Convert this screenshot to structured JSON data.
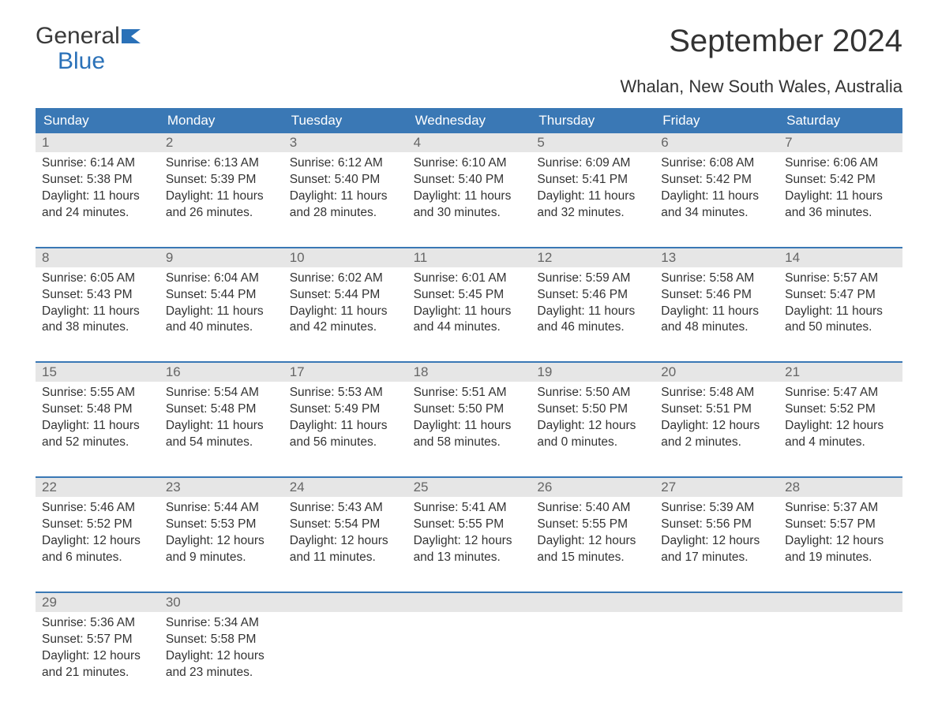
{
  "logo": {
    "word1": "General",
    "word2": "Blue",
    "flag_color": "#2a71b8"
  },
  "title": "September 2024",
  "subtitle": "Whalan, New South Wales, Australia",
  "colors": {
    "header_bg": "#3a78b5",
    "header_text": "#ffffff",
    "daynum_bg": "#e6e6e6",
    "daynum_text": "#666666",
    "body_text": "#333333",
    "week_border": "#3a78b5",
    "page_bg": "#ffffff"
  },
  "day_headers": [
    "Sunday",
    "Monday",
    "Tuesday",
    "Wednesday",
    "Thursday",
    "Friday",
    "Saturday"
  ],
  "weeks": [
    [
      {
        "n": "1",
        "sunrise": "6:14 AM",
        "sunset": "5:38 PM",
        "dl1": "Daylight: 11 hours",
        "dl2": "and 24 minutes."
      },
      {
        "n": "2",
        "sunrise": "6:13 AM",
        "sunset": "5:39 PM",
        "dl1": "Daylight: 11 hours",
        "dl2": "and 26 minutes."
      },
      {
        "n": "3",
        "sunrise": "6:12 AM",
        "sunset": "5:40 PM",
        "dl1": "Daylight: 11 hours",
        "dl2": "and 28 minutes."
      },
      {
        "n": "4",
        "sunrise": "6:10 AM",
        "sunset": "5:40 PM",
        "dl1": "Daylight: 11 hours",
        "dl2": "and 30 minutes."
      },
      {
        "n": "5",
        "sunrise": "6:09 AM",
        "sunset": "5:41 PM",
        "dl1": "Daylight: 11 hours",
        "dl2": "and 32 minutes."
      },
      {
        "n": "6",
        "sunrise": "6:08 AM",
        "sunset": "5:42 PM",
        "dl1": "Daylight: 11 hours",
        "dl2": "and 34 minutes."
      },
      {
        "n": "7",
        "sunrise": "6:06 AM",
        "sunset": "5:42 PM",
        "dl1": "Daylight: 11 hours",
        "dl2": "and 36 minutes."
      }
    ],
    [
      {
        "n": "8",
        "sunrise": "6:05 AM",
        "sunset": "5:43 PM",
        "dl1": "Daylight: 11 hours",
        "dl2": "and 38 minutes."
      },
      {
        "n": "9",
        "sunrise": "6:04 AM",
        "sunset": "5:44 PM",
        "dl1": "Daylight: 11 hours",
        "dl2": "and 40 minutes."
      },
      {
        "n": "10",
        "sunrise": "6:02 AM",
        "sunset": "5:44 PM",
        "dl1": "Daylight: 11 hours",
        "dl2": "and 42 minutes."
      },
      {
        "n": "11",
        "sunrise": "6:01 AM",
        "sunset": "5:45 PM",
        "dl1": "Daylight: 11 hours",
        "dl2": "and 44 minutes."
      },
      {
        "n": "12",
        "sunrise": "5:59 AM",
        "sunset": "5:46 PM",
        "dl1": "Daylight: 11 hours",
        "dl2": "and 46 minutes."
      },
      {
        "n": "13",
        "sunrise": "5:58 AM",
        "sunset": "5:46 PM",
        "dl1": "Daylight: 11 hours",
        "dl2": "and 48 minutes."
      },
      {
        "n": "14",
        "sunrise": "5:57 AM",
        "sunset": "5:47 PM",
        "dl1": "Daylight: 11 hours",
        "dl2": "and 50 minutes."
      }
    ],
    [
      {
        "n": "15",
        "sunrise": "5:55 AM",
        "sunset": "5:48 PM",
        "dl1": "Daylight: 11 hours",
        "dl2": "and 52 minutes."
      },
      {
        "n": "16",
        "sunrise": "5:54 AM",
        "sunset": "5:48 PM",
        "dl1": "Daylight: 11 hours",
        "dl2": "and 54 minutes."
      },
      {
        "n": "17",
        "sunrise": "5:53 AM",
        "sunset": "5:49 PM",
        "dl1": "Daylight: 11 hours",
        "dl2": "and 56 minutes."
      },
      {
        "n": "18",
        "sunrise": "5:51 AM",
        "sunset": "5:50 PM",
        "dl1": "Daylight: 11 hours",
        "dl2": "and 58 minutes."
      },
      {
        "n": "19",
        "sunrise": "5:50 AM",
        "sunset": "5:50 PM",
        "dl1": "Daylight: 12 hours",
        "dl2": "and 0 minutes."
      },
      {
        "n": "20",
        "sunrise": "5:48 AM",
        "sunset": "5:51 PM",
        "dl1": "Daylight: 12 hours",
        "dl2": "and 2 minutes."
      },
      {
        "n": "21",
        "sunrise": "5:47 AM",
        "sunset": "5:52 PM",
        "dl1": "Daylight: 12 hours",
        "dl2": "and 4 minutes."
      }
    ],
    [
      {
        "n": "22",
        "sunrise": "5:46 AM",
        "sunset": "5:52 PM",
        "dl1": "Daylight: 12 hours",
        "dl2": "and 6 minutes."
      },
      {
        "n": "23",
        "sunrise": "5:44 AM",
        "sunset": "5:53 PM",
        "dl1": "Daylight: 12 hours",
        "dl2": "and 9 minutes."
      },
      {
        "n": "24",
        "sunrise": "5:43 AM",
        "sunset": "5:54 PM",
        "dl1": "Daylight: 12 hours",
        "dl2": "and 11 minutes."
      },
      {
        "n": "25",
        "sunrise": "5:41 AM",
        "sunset": "5:55 PM",
        "dl1": "Daylight: 12 hours",
        "dl2": "and 13 minutes."
      },
      {
        "n": "26",
        "sunrise": "5:40 AM",
        "sunset": "5:55 PM",
        "dl1": "Daylight: 12 hours",
        "dl2": "and 15 minutes."
      },
      {
        "n": "27",
        "sunrise": "5:39 AM",
        "sunset": "5:56 PM",
        "dl1": "Daylight: 12 hours",
        "dl2": "and 17 minutes."
      },
      {
        "n": "28",
        "sunrise": "5:37 AM",
        "sunset": "5:57 PM",
        "dl1": "Daylight: 12 hours",
        "dl2": "and 19 minutes."
      }
    ],
    [
      {
        "n": "29",
        "sunrise": "5:36 AM",
        "sunset": "5:57 PM",
        "dl1": "Daylight: 12 hours",
        "dl2": "and 21 minutes."
      },
      {
        "n": "30",
        "sunrise": "5:34 AM",
        "sunset": "5:58 PM",
        "dl1": "Daylight: 12 hours",
        "dl2": "and 23 minutes."
      },
      null,
      null,
      null,
      null,
      null
    ]
  ],
  "labels": {
    "sunrise_prefix": "Sunrise: ",
    "sunset_prefix": "Sunset: "
  }
}
